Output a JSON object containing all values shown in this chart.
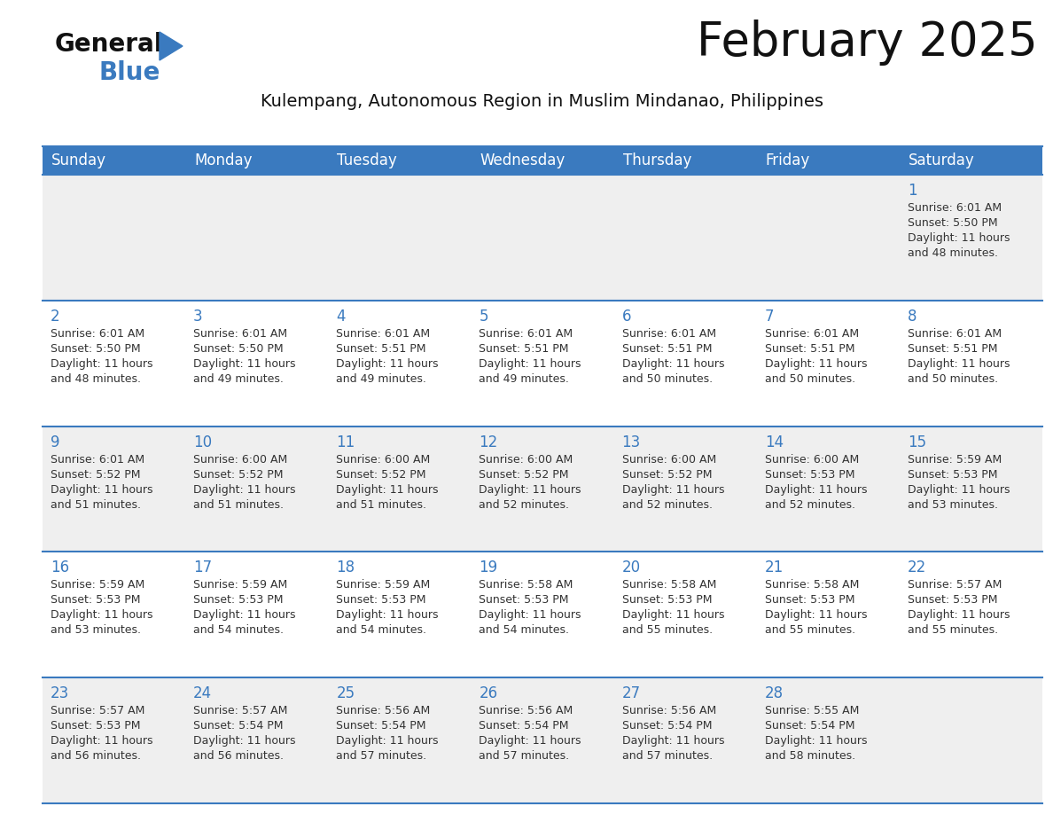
{
  "title": "February 2025",
  "subtitle": "Kulempang, Autonomous Region in Muslim Mindanao, Philippines",
  "header_bg_color": "#3a7abf",
  "header_text_color": "#ffffff",
  "weekdays": [
    "Sunday",
    "Monday",
    "Tuesday",
    "Wednesday",
    "Thursday",
    "Friday",
    "Saturday"
  ],
  "row_bg_even": "#efefef",
  "row_bg_odd": "#ffffff",
  "cell_border_color": "#3a7abf",
  "day_number_color": "#3a7abf",
  "info_text_color": "#333333",
  "background_color": "#ffffff",
  "days": [
    {
      "day": 1,
      "row": 0,
      "col": 6,
      "sunrise": "6:01 AM",
      "sunset": "5:50 PM",
      "daylight_hrs": "11 hours",
      "daylight_min": "and 48 minutes."
    },
    {
      "day": 2,
      "row": 1,
      "col": 0,
      "sunrise": "6:01 AM",
      "sunset": "5:50 PM",
      "daylight_hrs": "11 hours",
      "daylight_min": "and 48 minutes."
    },
    {
      "day": 3,
      "row": 1,
      "col": 1,
      "sunrise": "6:01 AM",
      "sunset": "5:50 PM",
      "daylight_hrs": "11 hours",
      "daylight_min": "and 49 minutes."
    },
    {
      "day": 4,
      "row": 1,
      "col": 2,
      "sunrise": "6:01 AM",
      "sunset": "5:51 PM",
      "daylight_hrs": "11 hours",
      "daylight_min": "and 49 minutes."
    },
    {
      "day": 5,
      "row": 1,
      "col": 3,
      "sunrise": "6:01 AM",
      "sunset": "5:51 PM",
      "daylight_hrs": "11 hours",
      "daylight_min": "and 49 minutes."
    },
    {
      "day": 6,
      "row": 1,
      "col": 4,
      "sunrise": "6:01 AM",
      "sunset": "5:51 PM",
      "daylight_hrs": "11 hours",
      "daylight_min": "and 50 minutes."
    },
    {
      "day": 7,
      "row": 1,
      "col": 5,
      "sunrise": "6:01 AM",
      "sunset": "5:51 PM",
      "daylight_hrs": "11 hours",
      "daylight_min": "and 50 minutes."
    },
    {
      "day": 8,
      "row": 1,
      "col": 6,
      "sunrise": "6:01 AM",
      "sunset": "5:51 PM",
      "daylight_hrs": "11 hours",
      "daylight_min": "and 50 minutes."
    },
    {
      "day": 9,
      "row": 2,
      "col": 0,
      "sunrise": "6:01 AM",
      "sunset": "5:52 PM",
      "daylight_hrs": "11 hours",
      "daylight_min": "and 51 minutes."
    },
    {
      "day": 10,
      "row": 2,
      "col": 1,
      "sunrise": "6:00 AM",
      "sunset": "5:52 PM",
      "daylight_hrs": "11 hours",
      "daylight_min": "and 51 minutes."
    },
    {
      "day": 11,
      "row": 2,
      "col": 2,
      "sunrise": "6:00 AM",
      "sunset": "5:52 PM",
      "daylight_hrs": "11 hours",
      "daylight_min": "and 51 minutes."
    },
    {
      "day": 12,
      "row": 2,
      "col": 3,
      "sunrise": "6:00 AM",
      "sunset": "5:52 PM",
      "daylight_hrs": "11 hours",
      "daylight_min": "and 52 minutes."
    },
    {
      "day": 13,
      "row": 2,
      "col": 4,
      "sunrise": "6:00 AM",
      "sunset": "5:52 PM",
      "daylight_hrs": "11 hours",
      "daylight_min": "and 52 minutes."
    },
    {
      "day": 14,
      "row": 2,
      "col": 5,
      "sunrise": "6:00 AM",
      "sunset": "5:53 PM",
      "daylight_hrs": "11 hours",
      "daylight_min": "and 52 minutes."
    },
    {
      "day": 15,
      "row": 2,
      "col": 6,
      "sunrise": "5:59 AM",
      "sunset": "5:53 PM",
      "daylight_hrs": "11 hours",
      "daylight_min": "and 53 minutes."
    },
    {
      "day": 16,
      "row": 3,
      "col": 0,
      "sunrise": "5:59 AM",
      "sunset": "5:53 PM",
      "daylight_hrs": "11 hours",
      "daylight_min": "and 53 minutes."
    },
    {
      "day": 17,
      "row": 3,
      "col": 1,
      "sunrise": "5:59 AM",
      "sunset": "5:53 PM",
      "daylight_hrs": "11 hours",
      "daylight_min": "and 54 minutes."
    },
    {
      "day": 18,
      "row": 3,
      "col": 2,
      "sunrise": "5:59 AM",
      "sunset": "5:53 PM",
      "daylight_hrs": "11 hours",
      "daylight_min": "and 54 minutes."
    },
    {
      "day": 19,
      "row": 3,
      "col": 3,
      "sunrise": "5:58 AM",
      "sunset": "5:53 PM",
      "daylight_hrs": "11 hours",
      "daylight_min": "and 54 minutes."
    },
    {
      "day": 20,
      "row": 3,
      "col": 4,
      "sunrise": "5:58 AM",
      "sunset": "5:53 PM",
      "daylight_hrs": "11 hours",
      "daylight_min": "and 55 minutes."
    },
    {
      "day": 21,
      "row": 3,
      "col": 5,
      "sunrise": "5:58 AM",
      "sunset": "5:53 PM",
      "daylight_hrs": "11 hours",
      "daylight_min": "and 55 minutes."
    },
    {
      "day": 22,
      "row": 3,
      "col": 6,
      "sunrise": "5:57 AM",
      "sunset": "5:53 PM",
      "daylight_hrs": "11 hours",
      "daylight_min": "and 55 minutes."
    },
    {
      "day": 23,
      "row": 4,
      "col": 0,
      "sunrise": "5:57 AM",
      "sunset": "5:53 PM",
      "daylight_hrs": "11 hours",
      "daylight_min": "and 56 minutes."
    },
    {
      "day": 24,
      "row": 4,
      "col": 1,
      "sunrise": "5:57 AM",
      "sunset": "5:54 PM",
      "daylight_hrs": "11 hours",
      "daylight_min": "and 56 minutes."
    },
    {
      "day": 25,
      "row": 4,
      "col": 2,
      "sunrise": "5:56 AM",
      "sunset": "5:54 PM",
      "daylight_hrs": "11 hours",
      "daylight_min": "and 57 minutes."
    },
    {
      "day": 26,
      "row": 4,
      "col": 3,
      "sunrise": "5:56 AM",
      "sunset": "5:54 PM",
      "daylight_hrs": "11 hours",
      "daylight_min": "and 57 minutes."
    },
    {
      "day": 27,
      "row": 4,
      "col": 4,
      "sunrise": "5:56 AM",
      "sunset": "5:54 PM",
      "daylight_hrs": "11 hours",
      "daylight_min": "and 57 minutes."
    },
    {
      "day": 28,
      "row": 4,
      "col": 5,
      "sunrise": "5:55 AM",
      "sunset": "5:54 PM",
      "daylight_hrs": "11 hours",
      "daylight_min": "and 58 minutes."
    }
  ],
  "num_rows": 5,
  "logo_text_general": "General",
  "logo_text_blue": "Blue",
  "logo_triangle_color": "#3a7abf",
  "title_fontsize": 38,
  "subtitle_fontsize": 14,
  "dow_fontsize": 12,
  "day_num_fontsize": 12,
  "info_fontsize": 9
}
